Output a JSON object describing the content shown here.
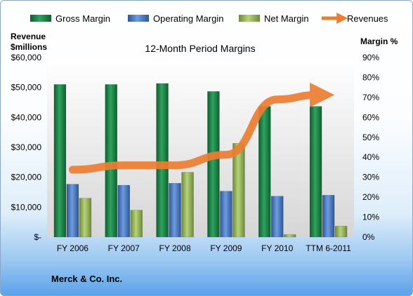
{
  "chart_data": {
    "type": "bar",
    "title": "12-Month Period Margins",
    "company": "Merck & Co. Inc.",
    "categories": [
      "FY 2006",
      "FY 2007",
      "FY 2008",
      "FY 2009",
      "FY 2010",
      "TTM 6-2011"
    ],
    "left_axis_title_line1": "Revenue",
    "left_axis_title_line2": "$millions",
    "right_axis_title": "Margin %",
    "left_ticks": [
      "$-",
      "$10,000",
      "$20,000",
      "$30,000",
      "$40,000",
      "$50,000",
      "$60,000"
    ],
    "right_ticks": [
      "0%",
      "10%",
      "20%",
      "30%",
      "40%",
      "50%",
      "60%",
      "70%",
      "80%",
      "90%"
    ],
    "y_margin_lim": [
      0,
      90
    ],
    "y_revenue_lim": [
      0,
      60000
    ],
    "legend_position": "top",
    "series": [
      {
        "name": "Gross Margin",
        "axis": "right",
        "values": [
          76.5,
          76.5,
          77,
          73,
          65.5,
          65.5
        ],
        "color": "#1e8a4a"
      },
      {
        "name": "Operating Margin",
        "axis": "right",
        "values": [
          26.5,
          26,
          27,
          23,
          20.5,
          21
        ],
        "color": "#4f7fc6"
      },
      {
        "name": "Net Margin",
        "axis": "right",
        "values": [
          19.5,
          13.5,
          32.5,
          47,
          1.3,
          5.5
        ],
        "color": "#9bbb59"
      },
      {
        "name": "Revenues",
        "axis": "left",
        "type": "line",
        "values": [
          22500,
          24000,
          24000,
          27500,
          46000,
          47500
        ],
        "color": "#ed7d31"
      }
    ]
  }
}
